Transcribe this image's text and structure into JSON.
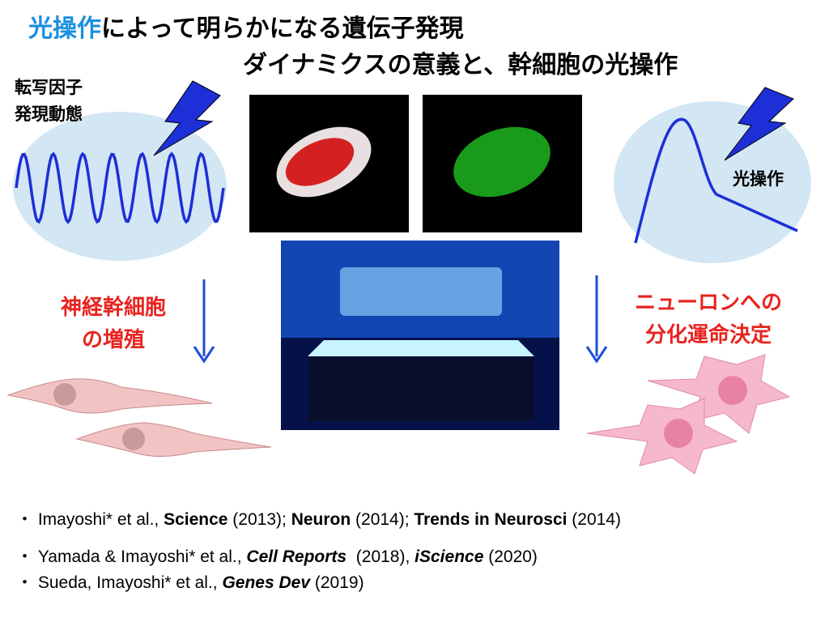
{
  "title": {
    "highlight": "光操作",
    "line1_rest": "によって明らかになる遺伝子発現",
    "line2": "ダイナミクスの意義と、幹細胞の光操作"
  },
  "left_panel": {
    "label_lines": [
      "転写因子",
      "発現動態"
    ],
    "caption_lines": [
      "神経幹細胞",
      "の増殖"
    ]
  },
  "right_panel": {
    "label": "光操作",
    "caption_lines": [
      "ニューロンへの",
      "分化運命決定"
    ]
  },
  "references": [
    [
      "・ Imayoshi* et al., ",
      "Science",
      " (2013); ",
      "Neuron",
      " (2014); ",
      "Trends in Neurosci",
      " (2014)"
    ],
    [
      "・ Yamada & Imayoshi* et al., ",
      "Cell Reports",
      "  (2018), ",
      "iScience",
      " (2020)"
    ],
    [
      "・ Sueda, Imayoshi* et al., ",
      "Genes Dev",
      " (2019)"
    ]
  ]
}
